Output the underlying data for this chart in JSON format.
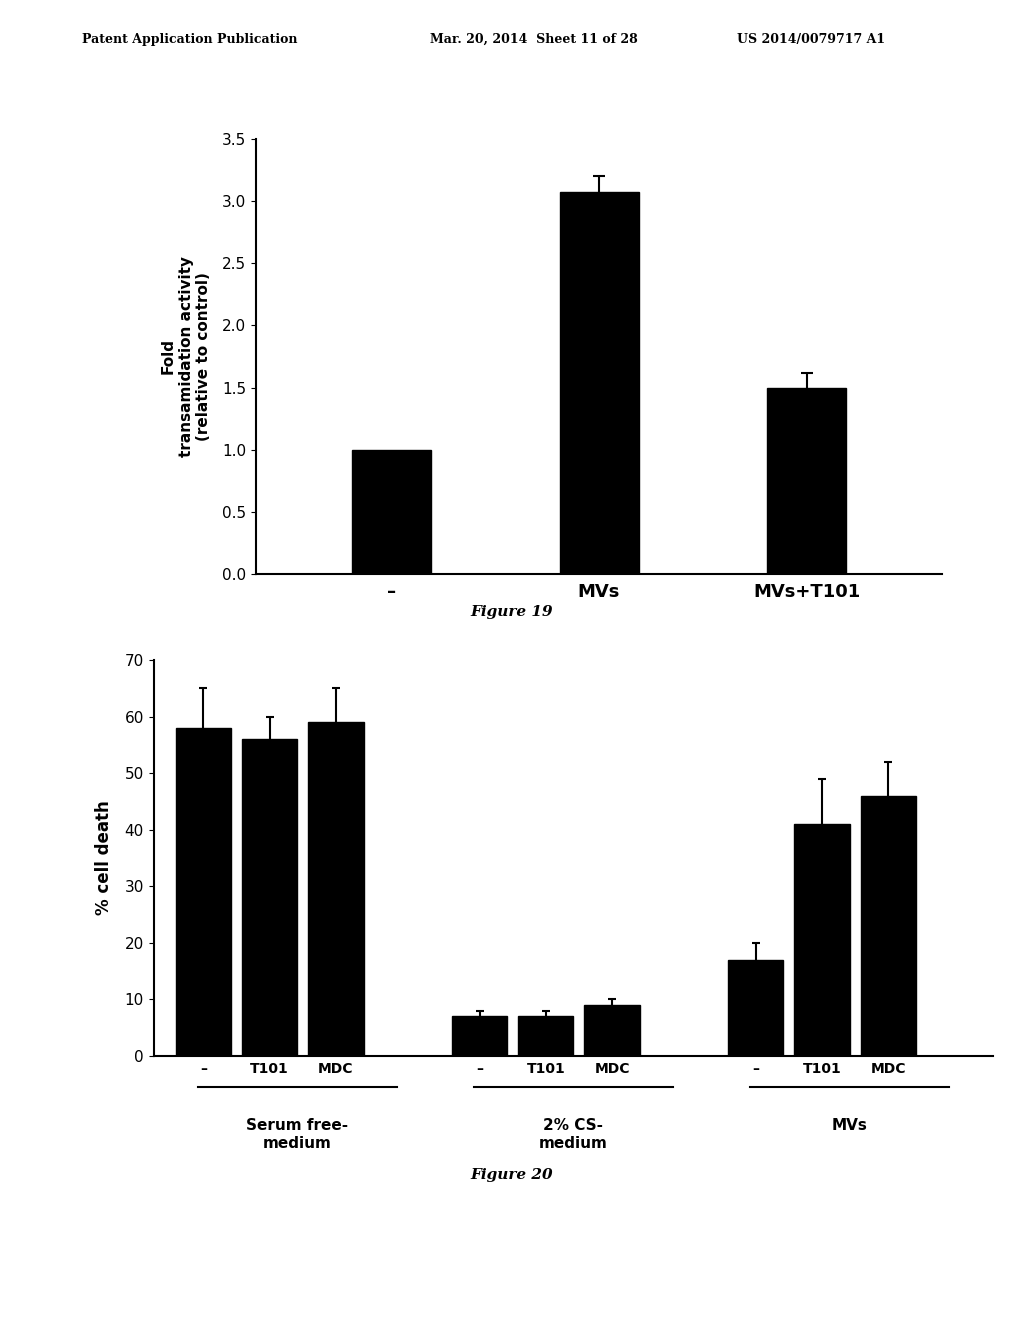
{
  "fig19": {
    "categories": [
      "–",
      "MVs",
      "MVs+T101"
    ],
    "values": [
      1.0,
      3.07,
      1.5
    ],
    "errors": [
      0.0,
      0.13,
      0.12
    ],
    "ylabel_line1": "Fold",
    "ylabel_line2": "transamidation activity",
    "ylabel_line3": "(relative to control)",
    "yticks": [
      0,
      0.5,
      1,
      1.5,
      2,
      2.5,
      3,
      3.5
    ],
    "ylim": [
      0,
      3.5
    ],
    "bar_color": "#000000",
    "caption": "Figure 19"
  },
  "fig20": {
    "groups": [
      {
        "label": "Serum free-\nmedium",
        "bars": [
          {
            "x_label": "–",
            "value": 58,
            "error": 7
          },
          {
            "x_label": "T101",
            "value": 56,
            "error": 4
          },
          {
            "x_label": "MDC",
            "value": 59,
            "error": 6
          }
        ]
      },
      {
        "label": "2% CS-\nmedium",
        "bars": [
          {
            "x_label": "–",
            "value": 7,
            "error": 1
          },
          {
            "x_label": "T101",
            "value": 7,
            "error": 1
          },
          {
            "x_label": "MDC",
            "value": 9,
            "error": 1
          }
        ]
      },
      {
        "label": "MVs",
        "bars": [
          {
            "x_label": "–",
            "value": 17,
            "error": 3
          },
          {
            "x_label": "T101",
            "value": 41,
            "error": 8
          },
          {
            "x_label": "MDC",
            "value": 46,
            "error": 6
          }
        ]
      }
    ],
    "ylabel": "% cell death",
    "yticks": [
      0,
      10,
      20,
      30,
      40,
      50,
      60,
      70
    ],
    "ylim": [
      0,
      70
    ],
    "bar_color": "#000000",
    "caption": "Figure 20"
  },
  "header_left": "Patent Application Publication",
  "header_mid": "Mar. 20, 2014  Sheet 11 of 28",
  "header_right": "US 2014/0079717 A1",
  "bg_color": "#ffffff"
}
